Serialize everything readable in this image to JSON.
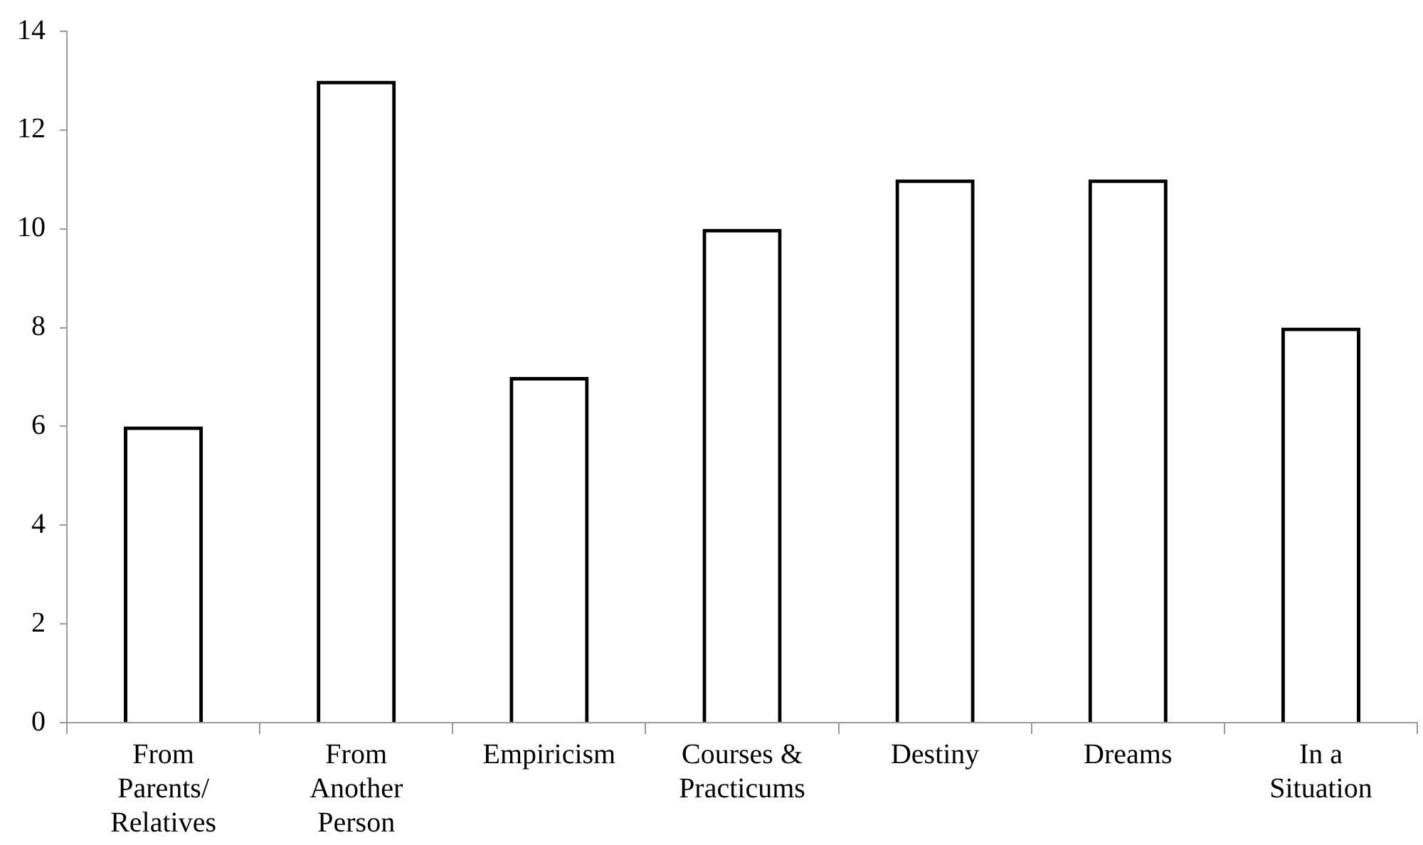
{
  "chart_data": {
    "type": "bar",
    "categories": [
      "From Parents/ Relatives",
      "From Another Person",
      "Empiricism",
      "Courses & Practicums",
      "Destiny",
      "Dreams",
      "In a Situation"
    ],
    "values": [
      6,
      13,
      7,
      10,
      11,
      11,
      8
    ],
    "color": "#000000",
    "ylim": [
      0,
      14
    ],
    "yticks": [
      0,
      2,
      4,
      6,
      8,
      10,
      12,
      14
    ],
    "grid": false,
    "legend": false
  }
}
